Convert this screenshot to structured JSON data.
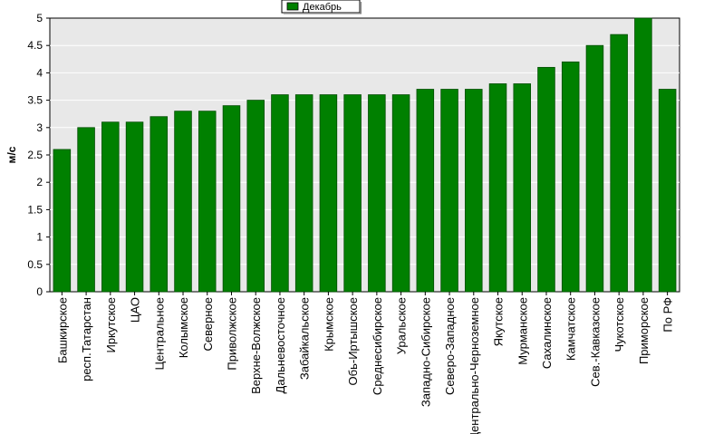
{
  "chart_data": {
    "type": "bar",
    "categories": [
      "Башкирское",
      "респ.Татарстан",
      "Иркутское",
      "ЦАО",
      "Центральное",
      "Колымское",
      "Северное",
      "Приволжское",
      "Верхне-Волжское",
      "Дальневосточное",
      "Забайкальское",
      "Крымское",
      "Обь-Иртышское",
      "Среднесибирское",
      "Уральское",
      "Западно-Сибирское",
      "Северо-Западное",
      "Центрально-Черноземное",
      "Якутское",
      "Мурманское",
      "Сахалинское",
      "Камчатское",
      "Сев.-Кавказское",
      "Чукотское",
      "Приморское",
      "По РФ"
    ],
    "series": [
      {
        "name": "Декабрь",
        "values": [
          2.6,
          3.0,
          3.1,
          3.1,
          3.2,
          3.3,
          3.3,
          3.4,
          3.5,
          3.6,
          3.6,
          3.6,
          3.6,
          3.6,
          3.6,
          3.7,
          3.7,
          3.7,
          3.8,
          3.8,
          4.1,
          4.2,
          4.5,
          4.7,
          5.0,
          3.7
        ]
      }
    ],
    "ylabel": "м/с",
    "xlabel": "",
    "ylim": [
      0,
      5
    ],
    "yticks": [
      "0",
      "0.5",
      "1",
      "1.5",
      "2",
      "2.5",
      "3",
      "3.5",
      "4",
      "4.5",
      "5"
    ],
    "grid": true,
    "legend_position": "top-center",
    "colors": {
      "bar": "#008000",
      "bar_border": "#004d00",
      "plot_bg": "#e8e8e8",
      "grid": "#ffffff"
    }
  }
}
